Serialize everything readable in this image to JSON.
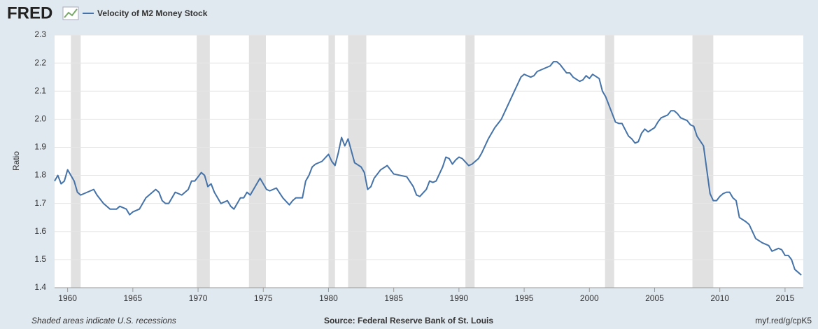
{
  "chart_data": {
    "type": "line",
    "logo": "FRED",
    "series": [
      {
        "name": "Velocity of M2 Money Stock",
        "color": "#4572a7",
        "values": [
          1.78,
          1.8,
          1.77,
          1.78,
          1.82,
          1.78,
          1.74,
          1.73,
          1.74,
          1.75,
          1.73,
          1.7,
          1.68,
          1.68,
          1.69,
          1.68,
          1.66,
          1.67,
          1.68,
          1.72,
          1.74,
          1.75,
          1.74,
          1.71,
          1.7,
          1.7,
          1.74,
          1.73,
          1.75,
          1.78,
          1.78,
          1.81,
          1.8,
          1.76,
          1.77,
          1.74,
          1.7,
          1.71,
          1.69,
          1.68,
          1.72,
          1.72,
          1.74,
          1.73,
          1.75,
          1.79,
          1.77,
          1.75,
          1.745,
          1.75,
          1.755,
          1.72,
          1.695,
          1.71,
          1.72,
          1.72,
          1.78,
          1.8,
          1.83,
          1.84,
          1.85,
          1.875,
          1.85,
          1.835,
          1.88,
          1.935,
          1.905,
          1.93,
          1.845,
          1.83,
          1.81,
          1.75,
          1.76,
          1.79,
          1.82,
          1.835,
          1.805,
          1.8,
          1.795,
          1.76,
          1.73,
          1.725,
          1.75,
          1.78,
          1.775,
          1.78,
          1.83,
          1.865,
          1.86,
          1.84,
          1.855,
          1.865,
          1.86,
          1.835,
          1.84,
          1.86,
          1.88,
          1.93,
          1.97,
          2.0,
          2.05,
          2.1,
          2.15,
          2.16,
          2.155,
          2.15,
          2.155,
          2.17,
          2.18,
          2.19,
          2.205,
          2.205,
          2.195,
          2.165,
          2.165,
          2.15,
          2.135,
          2.14,
          2.155,
          2.145,
          2.16,
          2.145,
          2.1,
          2.08,
          2.02,
          1.99,
          1.985,
          1.985,
          1.94,
          1.93,
          1.915,
          1.92,
          1.95,
          1.965,
          1.955,
          1.97,
          1.99,
          2.005,
          2.01,
          2.015,
          2.03,
          2.03,
          2.02,
          2.005,
          1.995,
          1.98,
          1.975,
          1.94,
          1.905,
          1.82,
          1.735,
          1.71,
          1.71,
          1.725,
          1.735,
          1.74,
          1.74,
          1.72,
          1.71,
          1.65,
          1.635,
          1.625,
          1.575,
          1.56,
          1.55,
          1.53,
          1.54,
          1.535,
          1.515,
          1.515,
          1.5,
          1.465,
          1.455,
          1.445
        ]
      }
    ],
    "x": [
      1959,
      1959.25,
      1959.5,
      1959.75,
      1960,
      1960.5,
      1960.75,
      1961,
      1961.5,
      1962,
      1962.25,
      1962.75,
      1963.25,
      1963.75,
      1964,
      1964.5,
      1964.75,
      1965,
      1965.5,
      1966,
      1966.5,
      1966.75,
      1967,
      1967.25,
      1967.5,
      1967.75,
      1968.25,
      1968.75,
      1969.25,
      1969.5,
      1969.75,
      1970.25,
      1970.5,
      1970.75,
      1971,
      1971.25,
      1971.75,
      1972.25,
      1972.5,
      1972.75,
      1973.25,
      1973.5,
      1973.75,
      1974,
      1974.25,
      1974.75,
      1975,
      1975.25,
      1975.5,
      1975.75,
      1976,
      1976.5,
      1977,
      1977.25,
      1977.5,
      1978,
      1978.25,
      1978.5,
      1978.75,
      1979,
      1979.5,
      1980,
      1980.25,
      1980.5,
      1980.75,
      1981,
      1981.25,
      1981.5,
      1982,
      1982.5,
      1982.75,
      1983,
      1983.25,
      1983.5,
      1984,
      1984.5,
      1985,
      1985.5,
      1986,
      1986.5,
      1986.75,
      1987,
      1987.5,
      1987.75,
      1988,
      1988.25,
      1988.75,
      1989,
      1989.25,
      1989.5,
      1989.75,
      1990,
      1990.25,
      1990.75,
      1991,
      1991.5,
      1991.75,
      1992.25,
      1992.75,
      1993.25,
      1993.75,
      1994.25,
      1994.75,
      1995,
      1995.25,
      1995.5,
      1995.75,
      1996,
      1996.5,
      1997,
      1997.25,
      1997.5,
      1997.75,
      1998.25,
      1998.5,
      1998.75,
      1999.25,
      1999.5,
      1999.75,
      2000,
      2000.25,
      2000.75,
      2001,
      2001.25,
      2001.75,
      2002,
      2002.25,
      2002.5,
      2003,
      2003.25,
      2003.5,
      2003.75,
      2004,
      2004.25,
      2004.5,
      2005,
      2005.25,
      2005.5,
      2005.75,
      2006,
      2006.25,
      2006.5,
      2006.75,
      2007,
      2007.5,
      2007.75,
      2008,
      2008.25,
      2008.75,
      2009,
      2009.25,
      2009.5,
      2009.75,
      2010,
      2010.25,
      2010.5,
      2010.75,
      2011,
      2011.25,
      2011.5,
      2012,
      2012.25,
      2012.75,
      2013.25,
      2013.75,
      2014,
      2014.5,
      2014.75,
      2015,
      2015.25,
      2015.5,
      2015.75,
      2016,
      2016.25
    ],
    "recessions": [
      [
        1960.25,
        1961
      ],
      [
        1969.9,
        1970.9
      ],
      [
        1973.9,
        1975.2
      ],
      [
        1980,
        1980.5
      ],
      [
        1981.5,
        1982.9
      ],
      [
        1990.5,
        1991.2
      ],
      [
        2001.2,
        2001.9
      ],
      [
        2007.9,
        2009.5
      ]
    ],
    "recession_color": "#e1e1e1",
    "xlim": [
      1959,
      2016.4
    ],
    "xticks": [
      1960,
      1965,
      1970,
      1975,
      1980,
      1985,
      1990,
      1995,
      2000,
      2005,
      2010,
      2015
    ],
    "ylim": [
      1.4,
      2.3
    ],
    "yticks": [
      1.4,
      1.5,
      1.6,
      1.7,
      1.8,
      1.9,
      {
        "value": 2,
        "label": "2.0"
      },
      2.1,
      2.2,
      2.3
    ],
    "ylabel": "Ratio",
    "grid": true,
    "note": "Shaded areas indicate U.S. recessions",
    "source": "Source: Federal Reserve Bank of St. Louis",
    "link": "myf.red/g/cpK5"
  }
}
